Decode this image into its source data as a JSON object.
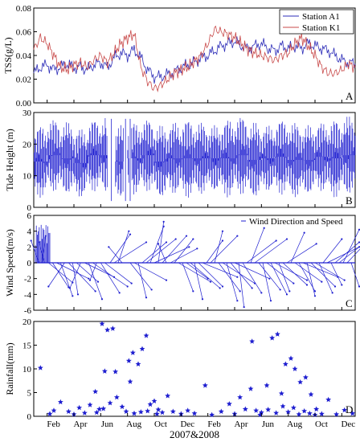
{
  "figure": {
    "xlabel": "2007&2008",
    "month_ticks": [
      "Feb",
      "Apr",
      "Jun",
      "Aug",
      "Oct",
      "Dec",
      "Feb",
      "Apr",
      "Jun",
      "Aug",
      "Oct",
      "Dec"
    ]
  },
  "chart_data": [
    {
      "panel": "A",
      "type": "line",
      "ylabel": "TSS(g/L)",
      "ylim": [
        0.0,
        0.08
      ],
      "yticks": [
        "0.00",
        "0.02",
        "0.04",
        "0.06",
        "0.08"
      ],
      "legend_position": "top-right",
      "x_unit": "month index (0 = start of Jan 2007, 24 = end of Dec 2008)",
      "series": [
        {
          "name": "Station A1",
          "color": "#2d2db8",
          "x": [
            0,
            0.5,
            1,
            1.5,
            2,
            2.5,
            3,
            3.5,
            4,
            4.5,
            5,
            5.5,
            6,
            6.5,
            7,
            7.5,
            8,
            8.5,
            9,
            9.5,
            10,
            10.5,
            11,
            11.5,
            12,
            12.5,
            13,
            13.5,
            14,
            14.5,
            15,
            15.5,
            16,
            16.5,
            17,
            17.5,
            18,
            18.5,
            19,
            19.5,
            20,
            20.5,
            21,
            21.5,
            22,
            22.5,
            23,
            23.5,
            24
          ],
          "values": [
            0.025,
            0.03,
            0.032,
            0.028,
            0.03,
            0.033,
            0.03,
            0.03,
            0.028,
            0.032,
            0.034,
            0.03,
            0.038,
            0.042,
            0.04,
            0.045,
            0.038,
            0.028,
            0.022,
            0.022,
            0.024,
            0.026,
            0.03,
            0.032,
            0.034,
            0.038,
            0.04,
            0.044,
            0.048,
            0.05,
            0.052,
            0.048,
            0.046,
            0.048,
            0.05,
            0.046,
            0.044,
            0.048,
            0.046,
            0.048,
            0.046,
            0.05,
            0.048,
            0.046,
            0.044,
            0.04,
            0.036,
            0.034,
            0.033
          ]
        },
        {
          "name": "Station K1",
          "color": "#c84a4a",
          "x": [
            0,
            0.5,
            1,
            1.5,
            2,
            2.5,
            3,
            3.5,
            4,
            4.5,
            5,
            5.5,
            6,
            6.5,
            7,
            7.5,
            8,
            8.5,
            9,
            9.5,
            10,
            10.5,
            11,
            11.5,
            12,
            12.5,
            13,
            13.5,
            14,
            14.5,
            15,
            15.5,
            16,
            16.5,
            17,
            17.5,
            18,
            18.5,
            19,
            19.5,
            20,
            20.5,
            21,
            21.5,
            22,
            22.5,
            23,
            23.5,
            24
          ],
          "values": [
            0.045,
            0.055,
            0.05,
            0.04,
            0.03,
            0.028,
            0.032,
            0.034,
            0.03,
            0.036,
            0.04,
            0.034,
            0.042,
            0.05,
            0.055,
            0.058,
            0.03,
            0.018,
            0.012,
            0.015,
            0.02,
            0.025,
            0.028,
            0.03,
            0.035,
            0.04,
            0.05,
            0.062,
            0.06,
            0.058,
            0.055,
            0.05,
            0.045,
            0.042,
            0.04,
            0.038,
            0.036,
            0.04,
            0.042,
            0.05,
            0.055,
            0.048,
            0.04,
            0.03,
            0.025,
            0.025,
            0.028,
            0.033,
            0.03
          ]
        }
      ]
    },
    {
      "panel": "B",
      "type": "line",
      "ylabel": "Tide Height (m)",
      "ylim": [
        0,
        30
      ],
      "yticks": [
        "0",
        "10",
        "20",
        "30"
      ],
      "x_unit": "month index",
      "series": [
        {
          "color": "#1f1fd0",
          "envelope_low": [
            3,
            5,
            4,
            3,
            5,
            4,
            3,
            4,
            5,
            3,
            4,
            3,
            4,
            5,
            3,
            4,
            3,
            5,
            4,
            3,
            4,
            5,
            3,
            4,
            4
          ],
          "envelope_high": [
            26,
            28,
            27,
            25,
            28,
            29,
            26,
            27,
            28,
            26,
            27,
            28,
            27,
            26,
            28,
            29,
            27,
            26,
            28,
            27,
            26,
            27,
            28,
            29,
            27
          ],
          "mean": 14,
          "gaps": [
            [
              5.5,
              6.1
            ],
            [
              6.7,
              7.0
            ],
            [
              7.1,
              7.3
            ]
          ]
        }
      ]
    },
    {
      "panel": "C",
      "type": "vector",
      "ylabel": "Wind Speed(m/s)",
      "ylim": [
        -6,
        6
      ],
      "yticks": [
        "-6",
        "-4",
        "-2",
        "0",
        "2",
        "4",
        "6"
      ],
      "legend": "Wind Direction and Speed",
      "legend_position": "top-right",
      "color": "#1f1fd0",
      "x_unit": "month index",
      "vectors": [
        [
          0.4,
          -0.6,
          2.8
        ],
        [
          0.6,
          0.3,
          3.4
        ],
        [
          0.8,
          -0.4,
          2.6
        ],
        [
          1.1,
          1.8,
          -2.5
        ],
        [
          1.4,
          1.2,
          -3.1
        ],
        [
          1.7,
          2.4,
          -2.0
        ],
        [
          2.0,
          0.9,
          -4.2
        ],
        [
          2.3,
          -1.2,
          -3.0
        ],
        [
          2.6,
          2.0,
          -3.6
        ],
        [
          2.9,
          0.4,
          -4.0
        ],
        [
          3.2,
          1.6,
          -2.4
        ],
        [
          3.5,
          -0.8,
          -3.2
        ],
        [
          3.8,
          2.2,
          -1.8
        ],
        [
          4.1,
          1.0,
          -4.6
        ],
        [
          4.4,
          2.6,
          -3.0
        ],
        [
          4.7,
          -0.5,
          -2.2
        ],
        [
          5.0,
          1.4,
          -3.8
        ],
        [
          5.3,
          2.0,
          -2.6
        ],
        [
          5.7,
          1.5,
          3.6
        ],
        [
          6.0,
          2.4,
          2.6
        ],
        [
          6.3,
          0.8,
          4.0
        ],
        [
          6.6,
          -1.0,
          2.0
        ],
        [
          7.2,
          1.6,
          -3.4
        ],
        [
          7.5,
          2.4,
          -2.2
        ],
        [
          7.8,
          0.6,
          -4.4
        ],
        [
          8.1,
          1.8,
          2.6
        ],
        [
          8.4,
          2.2,
          3.0
        ],
        [
          8.7,
          1.0,
          4.6
        ],
        [
          9.0,
          2.6,
          2.0
        ],
        [
          9.3,
          0.4,
          5.2
        ],
        [
          9.6,
          1.8,
          3.4
        ],
        [
          9.9,
          -0.6,
          2.4
        ],
        [
          10.2,
          2.0,
          1.8
        ],
        [
          10.5,
          1.4,
          3.0
        ],
        [
          10.8,
          2.4,
          -2.4
        ],
        [
          11.1,
          0.8,
          -3.6
        ],
        [
          11.4,
          1.6,
          -2.0
        ],
        [
          11.7,
          2.2,
          -3.2
        ],
        [
          12.0,
          0.6,
          -4.6
        ],
        [
          12.3,
          1.8,
          -3.0
        ],
        [
          12.6,
          2.6,
          -1.8
        ],
        [
          12.9,
          1.2,
          2.8
        ],
        [
          13.2,
          2.0,
          3.4
        ],
        [
          13.5,
          0.6,
          4.0
        ],
        [
          13.8,
          1.6,
          -3.6
        ],
        [
          14.1,
          2.4,
          -2.6
        ],
        [
          14.4,
          0.8,
          -4.8
        ],
        [
          14.7,
          1.6,
          -3.2
        ],
        [
          15.0,
          2.6,
          -2.0
        ],
        [
          15.3,
          0.4,
          -5.6
        ],
        [
          15.6,
          1.4,
          -3.8
        ],
        [
          15.9,
          2.2,
          2.8
        ],
        [
          16.2,
          1.0,
          4.4
        ],
        [
          16.5,
          2.4,
          3.0
        ],
        [
          16.8,
          1.6,
          -3.4
        ],
        [
          17.1,
          0.6,
          -4.8
        ],
        [
          17.4,
          2.0,
          -2.6
        ],
        [
          17.7,
          1.2,
          -4.0
        ],
        [
          18.0,
          2.4,
          -2.2
        ],
        [
          18.3,
          0.8,
          -3.6
        ],
        [
          18.6,
          1.8,
          -2.8
        ],
        [
          18.9,
          2.2,
          2.4
        ],
        [
          19.2,
          1.0,
          3.8
        ],
        [
          19.5,
          2.0,
          -2.4
        ],
        [
          19.8,
          1.2,
          -3.6
        ],
        [
          20.1,
          2.6,
          -1.8
        ],
        [
          20.4,
          0.6,
          -4.2
        ],
        [
          20.7,
          1.8,
          -3.0
        ],
        [
          21.0,
          2.2,
          -2.2
        ],
        [
          21.3,
          1.0,
          -3.8
        ],
        [
          21.6,
          1.4,
          3.0
        ],
        [
          21.9,
          2.4,
          2.0
        ],
        [
          22.2,
          0.8,
          -2.8
        ],
        [
          22.5,
          1.8,
          2.6
        ],
        [
          22.8,
          2.4,
          3.2
        ],
        [
          23.1,
          1.2,
          4.2
        ],
        [
          23.4,
          2.0,
          3.6
        ],
        [
          23.7,
          0.6,
          -3.0
        ]
      ]
    },
    {
      "panel": "D",
      "type": "scatter",
      "ylabel": "Rainfall(mm)",
      "ylim": [
        0,
        20
      ],
      "yticks": [
        "0",
        "5",
        "10",
        "15",
        "20"
      ],
      "marker": "star",
      "color": "#1f1fd0",
      "x_unit": "month index",
      "x": [
        0.5,
        1.2,
        1.5,
        2.0,
        2.6,
        3.0,
        3.4,
        3.8,
        4.2,
        4.6,
        4.9,
        5.1,
        5.3,
        5.5,
        5.7,
        5.9,
        6.2,
        6.6,
        6.9,
        7.2,
        7.5,
        7.8,
        8.1,
        8.4,
        8.7,
        9.0,
        9.3,
        9.6,
        10.0,
        10.4,
        11.0,
        11.5,
        12.0,
        12.8,
        13.3,
        14.0,
        14.6,
        15.0,
        15.4,
        15.8,
        16.2,
        16.6,
        17.0,
        17.4,
        17.8,
        18.2,
        18.5,
        18.8,
        19.2,
        19.5,
        19.9,
        20.3,
        20.7,
        21.1,
        21.5,
        22.0,
        22.6,
        23.2,
        23.8,
        4.7,
        5.2,
        6.1,
        7.1,
        7.4,
        8.0,
        8.5,
        9.2,
        16.3,
        16.9,
        17.5,
        18.1,
        18.6,
        19.0,
        19.4,
        19.8,
        20.2,
        20.6,
        21.0
      ],
      "values": [
        10.2,
        0.5,
        1.2,
        3.0,
        1.0,
        0.4,
        1.8,
        0.7,
        2.4,
        5.2,
        1.5,
        19.5,
        9.5,
        18.2,
        2.8,
        18.5,
        4.0,
        2.0,
        1.0,
        7.3,
        0.6,
        11.0,
        14.2,
        17.0,
        2.5,
        3.2,
        1.4,
        0.8,
        4.3,
        1.0,
        0.5,
        1.2,
        0.6,
        6.5,
        0.3,
        1.0,
        2.6,
        0.5,
        4.0,
        1.5,
        5.8,
        1.2,
        0.8,
        6.5,
        16.5,
        17.3,
        4.8,
        11.0,
        12.2,
        10.0,
        7.2,
        8.2,
        4.6,
        1.5,
        0.5,
        3.5,
        0.4,
        1.3,
        0.6,
        0.8,
        1.6,
        9.4,
        11.7,
        13.4,
        0.9,
        1.1,
        0.5,
        15.8,
        0.3,
        1.4,
        0.7,
        2.1,
        0.9,
        1.8,
        0.4,
        1.1,
        0.6,
        0.3
      ]
    }
  ]
}
